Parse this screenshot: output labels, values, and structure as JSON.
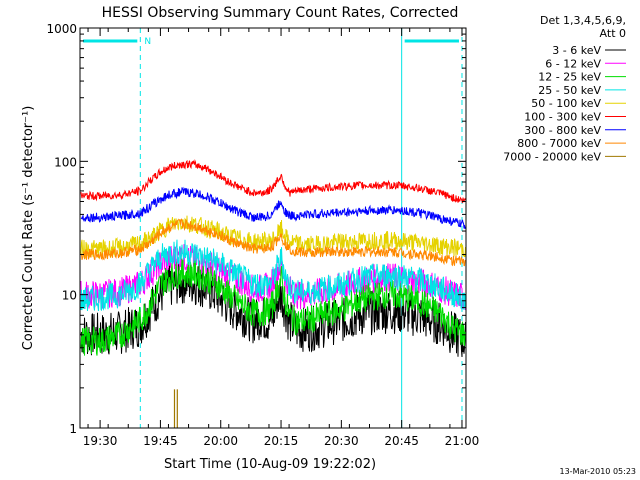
{
  "chart_data": {
    "type": "line",
    "title": "HESSI Observing Summary Count Rates, Corrected",
    "xlabel": "Start Time (10-Aug-09 19:22:02)",
    "ylabel": "Corrected Count Rate (s⁻¹ detector⁻¹)",
    "y_scale": "log",
    "ylim": [
      1,
      1000
    ],
    "xlim_minutes_after_1922": [
      3,
      99
    ],
    "x_ticks": [
      {
        "label": "19:30",
        "minute": 8
      },
      {
        "label": "19:45",
        "minute": 23
      },
      {
        "label": "20:00",
        "minute": 38
      },
      {
        "label": "20:15",
        "minute": 53
      },
      {
        "label": "20:30",
        "minute": 68
      },
      {
        "label": "20:45",
        "minute": 83
      },
      {
        "label": "21:00",
        "minute": 98
      }
    ],
    "y_ticks": [
      {
        "label": "1",
        "value": 1
      },
      {
        "label": "10",
        "value": 10
      },
      {
        "label": "100",
        "value": 100
      },
      {
        "label": "1000",
        "value": 1000
      }
    ],
    "legend_header": [
      "Det 1,3,4,5,6,9,",
      "Att 0"
    ],
    "timestamp": "13-Mar-2010 05:23",
    "night_marker": "N",
    "night_intervals": [
      [
        3,
        18
      ],
      [
        83,
        98
      ]
    ],
    "series": [
      {
        "name": "3 - 6 keV",
        "color": "#000000",
        "x": [
          3,
          8,
          13,
          18,
          20,
          23,
          25,
          28,
          31,
          34,
          37,
          40,
          43,
          46,
          48,
          50,
          51,
          52,
          53,
          54,
          55,
          57,
          60,
          63,
          66,
          69,
          72,
          75,
          78,
          81,
          84,
          87,
          90,
          93,
          96,
          99
        ],
        "values": [
          5,
          5,
          5.2,
          6,
          7.5,
          10,
          11.5,
          12.5,
          12.3,
          11.5,
          10,
          8.3,
          7.3,
          6.3,
          6.8,
          6.3,
          7,
          9,
          10,
          8,
          6.3,
          5.5,
          5.5,
          5.8,
          6.2,
          6.5,
          7,
          7.3,
          7.5,
          7.5,
          7.3,
          7,
          6.5,
          6,
          5,
          4.5
        ]
      },
      {
        "name": "6 - 12 keV",
        "color": "#ff00ff",
        "x": [
          3,
          8,
          13,
          18,
          20,
          23,
          25,
          28,
          31,
          34,
          37,
          40,
          43,
          46,
          48,
          50,
          51,
          52,
          53,
          54,
          55,
          57,
          60,
          63,
          66,
          69,
          72,
          75,
          78,
          81,
          84,
          87,
          90,
          93,
          96,
          99
        ],
        "values": [
          10,
          10,
          10.5,
          12,
          14,
          17,
          18.5,
          19,
          18.5,
          17.5,
          16,
          14,
          12.5,
          11,
          11.2,
          11.5,
          12.5,
          15,
          17,
          13,
          11,
          10,
          10,
          10.5,
          11,
          11.5,
          12.5,
          13,
          13.5,
          13.5,
          13,
          12.5,
          12,
          11,
          10,
          9.5
        ]
      },
      {
        "name": "12 - 25 keV",
        "color": "#00dd00",
        "x": [
          3,
          8,
          13,
          18,
          20,
          23,
          25,
          28,
          31,
          34,
          37,
          40,
          43,
          46,
          48,
          50,
          51,
          52,
          53,
          54,
          55,
          57,
          60,
          63,
          66,
          69,
          72,
          75,
          78,
          81,
          84,
          87,
          90,
          93,
          96,
          99
        ],
        "values": [
          4.5,
          4.5,
          5,
          6.5,
          8,
          12,
          13.5,
          14.5,
          14.5,
          13.5,
          12,
          10,
          8.5,
          7.3,
          7.3,
          7.8,
          8.5,
          11,
          13,
          9,
          7,
          6.3,
          6.5,
          7,
          7.5,
          8,
          9,
          9.5,
          10,
          10,
          9.5,
          9,
          8,
          7,
          5.5,
          5
        ]
      },
      {
        "name": "25 - 50 keV",
        "color": "#00e5e5",
        "x": [
          3,
          8,
          13,
          18,
          20,
          23,
          25,
          28,
          31,
          34,
          37,
          40,
          43,
          46,
          48,
          50,
          51,
          52,
          53,
          54,
          55,
          57,
          60,
          63,
          66,
          69,
          72,
          75,
          78,
          81,
          84,
          87,
          90,
          93,
          96,
          99
        ],
        "values": [
          9,
          9.5,
          10,
          12,
          15,
          19,
          20.5,
          21,
          20.5,
          19,
          17.5,
          15.5,
          13.5,
          12,
          12,
          12,
          13,
          16,
          19,
          14,
          11.5,
          10.5,
          10.5,
          11,
          11.5,
          12,
          13,
          13.5,
          14,
          14,
          13.5,
          13,
          12,
          11,
          10,
          9
        ]
      },
      {
        "name": "50 - 100 keV",
        "color": "#e5d200",
        "x": [
          3,
          8,
          13,
          18,
          20,
          23,
          25,
          28,
          31,
          34,
          37,
          40,
          43,
          46,
          48,
          50,
          51,
          52,
          53,
          54,
          55,
          57,
          60,
          63,
          66,
          69,
          72,
          75,
          78,
          81,
          84,
          87,
          90,
          93,
          96,
          99
        ],
        "values": [
          22,
          22,
          22.5,
          24,
          26,
          30,
          33,
          35,
          34,
          32,
          30,
          27.5,
          26,
          25,
          25,
          25,
          26,
          28,
          31,
          27,
          25,
          24,
          23.5,
          24,
          24.5,
          25,
          25,
          25.5,
          25.5,
          25.5,
          25,
          24.5,
          24,
          23,
          22.5,
          22
        ]
      },
      {
        "name": "100 - 300 keV",
        "color": "#ff0000",
        "x": [
          3,
          8,
          13,
          18,
          20,
          23,
          25,
          28,
          31,
          34,
          37,
          40,
          43,
          46,
          48,
          50,
          51,
          52,
          53,
          54,
          55,
          57,
          60,
          63,
          66,
          69,
          72,
          75,
          78,
          81,
          84,
          87,
          90,
          93,
          96,
          99
        ],
        "values": [
          55,
          55,
          56,
          60,
          70,
          83,
          90,
          95,
          95,
          90,
          80,
          70,
          63,
          58,
          58,
          60,
          65,
          72,
          78,
          65,
          58,
          60,
          62,
          63,
          64,
          65,
          66,
          66,
          66,
          66,
          65,
          63,
          60,
          57,
          53,
          50
        ]
      },
      {
        "name": "300 - 800 keV",
        "color": "#0000ff",
        "x": [
          3,
          8,
          13,
          18,
          20,
          23,
          25,
          28,
          31,
          34,
          37,
          40,
          43,
          46,
          48,
          50,
          51,
          52,
          53,
          54,
          55,
          57,
          60,
          63,
          66,
          69,
          72,
          75,
          78,
          81,
          84,
          87,
          90,
          93,
          96,
          99
        ],
        "values": [
          38,
          38,
          39,
          41,
          45,
          52,
          56,
          59,
          58,
          55,
          50,
          45,
          41,
          38,
          38,
          39,
          42,
          46,
          50,
          42,
          39,
          39,
          40,
          40.5,
          41,
          41.5,
          42,
          42.5,
          43,
          43,
          42.5,
          41,
          39,
          37,
          35,
          33
        ]
      },
      {
        "name": "800 - 7000 keV",
        "color": "#ff8800",
        "x": [
          3,
          8,
          13,
          18,
          20,
          23,
          25,
          28,
          31,
          34,
          37,
          40,
          43,
          46,
          48,
          50,
          51,
          52,
          53,
          54,
          55,
          57,
          60,
          63,
          66,
          69,
          72,
          75,
          78,
          81,
          84,
          87,
          90,
          93,
          96,
          99
        ],
        "values": [
          20,
          20,
          20.5,
          22,
          24,
          29,
          32,
          34,
          33,
          31,
          28.5,
          25.5,
          23.5,
          22,
          22,
          22.5,
          23.5,
          26,
          28,
          24,
          22,
          21,
          20.5,
          21,
          21,
          21,
          21,
          21,
          21,
          21,
          20.5,
          20,
          19.5,
          19,
          18,
          17.5
        ]
      },
      {
        "name": "7000 - 20000 keV",
        "color": "#a07800",
        "x": [
          26.5,
          27.2
        ],
        "values": [
          1.95,
          1.95
        ]
      }
    ]
  }
}
